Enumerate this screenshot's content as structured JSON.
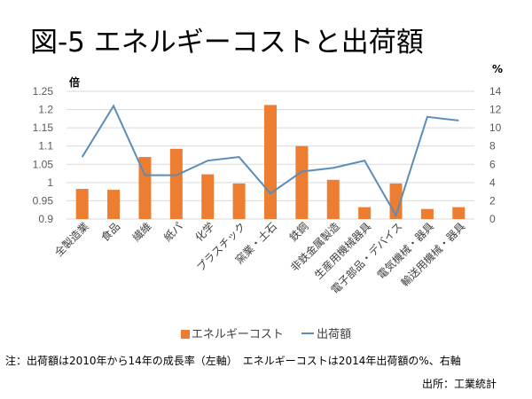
{
  "title": "図-5 エネルギーコストと出荷額",
  "chart_data": {
    "type": "bar+line",
    "title": "図-5 エネルギーコストと出荷額",
    "categories": [
      "全製造業",
      "食品",
      "繊維",
      "紙パ",
      "化学",
      "プラスチック",
      "窯業・土石",
      "鉄鋼",
      "非鉄金属製造",
      "生産用機械器具",
      "電子部品・デバイス",
      "電気機械・器具",
      "輸送用機械・器具"
    ],
    "series": [
      {
        "name": "エネルギーコスト",
        "type": "bar",
        "axis": "right",
        "color": "#ED7D31",
        "values": [
          3.3,
          3.2,
          6.8,
          7.7,
          4.9,
          3.9,
          12.5,
          8.0,
          4.3,
          1.3,
          3.9,
          1.1,
          1.3
        ]
      },
      {
        "name": "出荷額",
        "type": "line",
        "axis": "left",
        "color": "#5B8DB8",
        "values": [
          1.07,
          1.21,
          1.02,
          1.02,
          1.06,
          1.07,
          0.97,
          1.03,
          1.04,
          1.06,
          0.91,
          1.18,
          1.17
        ]
      }
    ],
    "left_axis": {
      "label": "倍",
      "ylim": [
        0.9,
        1.25
      ],
      "ticks": [
        "1.25",
        "1.2",
        "1.15",
        "1.1",
        "1.05",
        "1",
        "0.95",
        "0.9"
      ]
    },
    "right_axis": {
      "label": "%",
      "ylim": [
        0,
        14
      ],
      "ticks": [
        "14",
        "12",
        "10",
        "8",
        "6",
        "4",
        "2",
        "0"
      ]
    },
    "grid": true,
    "legend": "bottom"
  },
  "legend": {
    "bar_label": "エネルギーコスト",
    "line_label": "出荷額"
  },
  "note": "注：出荷額は2010年から14年の成長率（左軸）　エネルギーコストは2014年出荷額の%、右軸",
  "source": "出所：工業統計"
}
